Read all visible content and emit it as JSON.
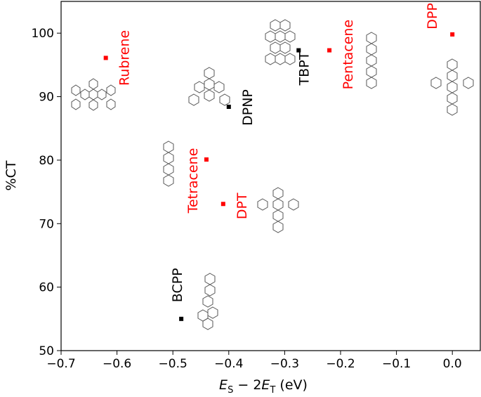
{
  "chart_data": {
    "type": "scatter",
    "xlabel_parts": {
      "e1": "E",
      "s1": "S",
      "mid": " − 2",
      "e2": "E",
      "s2": "T",
      "unit": " (eV)"
    },
    "ylabel": "%CT",
    "xlim": [
      -0.7,
      0.05
    ],
    "ylim": [
      50,
      105
    ],
    "xticks": [
      -0.7,
      -0.6,
      -0.5,
      -0.4,
      -0.3,
      -0.2,
      -0.1,
      0.0
    ],
    "xtick_labels": [
      "−0.7",
      "−0.6",
      "−0.5",
      "−0.4",
      "−0.3",
      "−0.2",
      "−0.1",
      "0.0"
    ],
    "yticks": [
      50,
      60,
      70,
      80,
      90,
      100
    ],
    "ytick_labels": [
      "50",
      "60",
      "70",
      "80",
      "90",
      "100"
    ],
    "grid": false,
    "colors": {
      "red": "#ff0000",
      "black": "#000000"
    },
    "points": [
      {
        "name": "Rubrene",
        "x": -0.62,
        "y": 96.1,
        "color": "red"
      },
      {
        "name": "Tetracene",
        "x": -0.44,
        "y": 80.1,
        "color": "red"
      },
      {
        "name": "DPT",
        "x": -0.41,
        "y": 73.1,
        "color": "red"
      },
      {
        "name": "DPNP",
        "x": -0.4,
        "y": 88.4,
        "color": "black"
      },
      {
        "name": "TBPT",
        "x": -0.275,
        "y": 97.3,
        "color": "black"
      },
      {
        "name": "Pentacene",
        "x": -0.22,
        "y": 97.3,
        "color": "red"
      },
      {
        "name": "DPP",
        "x": 0.0,
        "y": 99.8,
        "color": "red"
      },
      {
        "name": "BCPP",
        "x": -0.485,
        "y": 55.0,
        "color": "black"
      }
    ]
  }
}
